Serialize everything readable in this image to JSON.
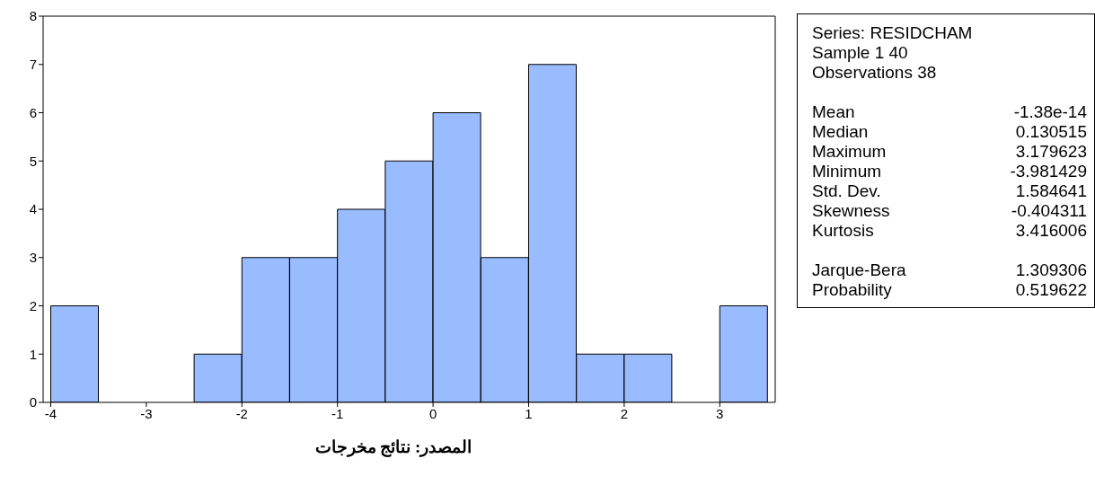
{
  "chart_data": [
    {
      "type": "histogram",
      "bins": [
        -4,
        -3.5,
        -3,
        -2.5,
        -2,
        -1.5,
        -1,
        -0.5,
        0,
        0.5,
        1,
        1.5,
        2,
        2.5,
        3,
        3.5
      ],
      "values": [
        2,
        0,
        0,
        1,
        3,
        3,
        4,
        5,
        6,
        3,
        7,
        1,
        1,
        0,
        2
      ],
      "color": "#99bbff",
      "xlim": [
        -4.08,
        3.58
      ],
      "xticks": [
        -4,
        -3,
        -2,
        -1,
        0,
        1,
        2,
        3
      ],
      "ylim": [
        0,
        8
      ],
      "yticks": [
        0,
        1,
        2,
        3,
        4,
        5,
        6,
        7,
        8
      ],
      "grid": false,
      "annotations": [
        "المصدر: نتائج مخرجات"
      ]
    },
    {
      "type": "other",
      "annotations": [
        "Series: RESIDCHAM",
        "Sample 1 40",
        "Observations 38",
        "Mean\t-1.38e-14",
        "Median\t0.130515",
        "Maximum\t3.179623",
        "Minimum\t-3.981429",
        "Std. Dev.\t1.584641",
        "Skewness\t-0.404311",
        "Kurtosis\t3.416006",
        "Jarque-Bera\t1.309306",
        "Probability\t0.519622"
      ]
    }
  ]
}
